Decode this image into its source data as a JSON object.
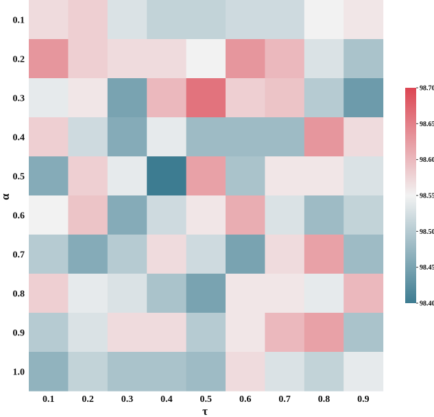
{
  "chart_data": {
    "type": "heatmap",
    "title": "",
    "xlabel": "τ",
    "ylabel": "α",
    "x": [
      "0.1",
      "0.2",
      "0.3",
      "0.4",
      "0.5",
      "0.6",
      "0.7",
      "0.8",
      "0.9"
    ],
    "y": [
      "0.1",
      "0.2",
      "0.3",
      "0.4",
      "0.5",
      "0.6",
      "0.7",
      "0.8",
      "0.9",
      "1.0"
    ],
    "values": [
      [
        98.57,
        98.58,
        98.53,
        98.51,
        98.51,
        98.52,
        98.52,
        98.55,
        98.56
      ],
      [
        98.63,
        98.58,
        98.57,
        98.57,
        98.55,
        98.63,
        98.6,
        98.53,
        98.49
      ],
      [
        98.54,
        98.56,
        98.45,
        98.6,
        98.66,
        98.58,
        98.59,
        98.5,
        98.44
      ],
      [
        98.58,
        98.52,
        98.46,
        98.54,
        98.48,
        98.48,
        98.48,
        98.63,
        98.57
      ],
      [
        98.46,
        98.58,
        98.54,
        98.4,
        98.62,
        98.49,
        98.56,
        98.56,
        98.53
      ],
      [
        98.55,
        98.59,
        98.46,
        98.52,
        98.56,
        98.61,
        98.53,
        98.48,
        98.51
      ],
      [
        98.5,
        98.46,
        98.5,
        98.57,
        98.52,
        98.45,
        98.57,
        98.62,
        98.48
      ],
      [
        98.58,
        98.54,
        98.53,
        98.49,
        98.45,
        98.56,
        98.56,
        98.54,
        98.6
      ],
      [
        98.5,
        98.53,
        98.57,
        98.57,
        98.5,
        98.56,
        98.6,
        98.62,
        98.49
      ],
      [
        98.47,
        98.51,
        98.49,
        98.49,
        98.48,
        98.57,
        98.53,
        98.51,
        98.54
      ]
    ],
    "colorbar": {
      "min": 98.4,
      "max": 98.7,
      "center": 98.55,
      "ticks": [
        "98.40",
        "98.45",
        "98.50",
        "98.55",
        "98.60",
        "98.65",
        "98.70"
      ]
    },
    "colors": {
      "low": "#3d7c91",
      "mid": "#f2f2f2",
      "high": "#dc4552"
    },
    "grid": false,
    "legend": "colorbar-right"
  }
}
